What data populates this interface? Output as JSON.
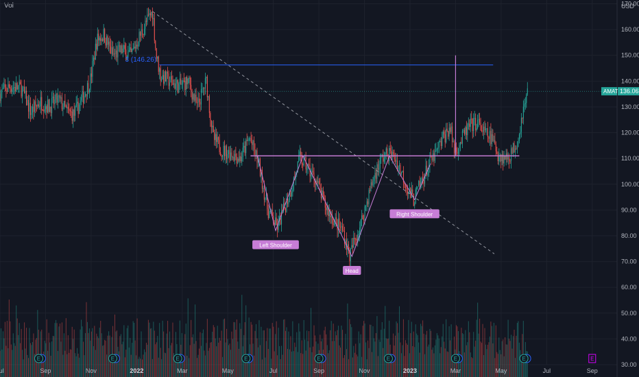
{
  "header": {
    "volume_label": "Vol",
    "currency": "USD"
  },
  "colors": {
    "background": "#131722",
    "up": "#26a69a",
    "down": "#ef5350",
    "pattern": "#c77dd6",
    "target_line": "#2962ff",
    "grid": "#1e222d",
    "price_tag": "#26a69a",
    "label_bg": "#c77dd6"
  },
  "chart_data": {
    "type": "candlestick",
    "ticker": "AMAT",
    "last_price": "136.06",
    "y_ticks": [
      "170.00",
      "160.00",
      "150.00",
      "140.00",
      "130.00",
      "120.00",
      "110.00",
      "100.00",
      "90.00",
      "80.00",
      "70.00",
      "60.00",
      "50.00",
      "40.00",
      "30.00"
    ],
    "ylim": [
      30,
      172
    ],
    "x_ticks": [
      {
        "label": "Jul",
        "t": 0.0
      },
      {
        "label": "Sep",
        "t": 2.0
      },
      {
        "label": "Nov",
        "t": 4.0
      },
      {
        "label": "2022",
        "t": 6.0,
        "bold": true
      },
      {
        "label": "Mar",
        "t": 8.0
      },
      {
        "label": "May",
        "t": 10.0
      },
      {
        "label": "Jul",
        "t": 12.0
      },
      {
        "label": "Sep",
        "t": 14.0
      },
      {
        "label": "Nov",
        "t": 16.0
      },
      {
        "label": "2023",
        "t": 18.0,
        "bold": true
      },
      {
        "label": "Mar",
        "t": 20.0
      },
      {
        "label": "May",
        "t": 22.0
      },
      {
        "label": "Jul",
        "t": 24.0
      },
      {
        "label": "Sep",
        "t": 26.0
      }
    ],
    "price_path": [
      [
        0,
        135
      ],
      [
        0.5,
        138
      ],
      [
        1,
        137
      ],
      [
        1.4,
        128
      ],
      [
        1.8,
        132
      ],
      [
        2.2,
        130
      ],
      [
        2.6,
        133
      ],
      [
        3,
        128
      ],
      [
        3.3,
        127
      ],
      [
        3.7,
        134
      ],
      [
        4,
        140
      ],
      [
        4.3,
        156
      ],
      [
        4.6,
        158
      ],
      [
        5,
        150
      ],
      [
        5.4,
        152
      ],
      [
        5.8,
        150
      ],
      [
        6.2,
        158
      ],
      [
        6.6,
        165
      ],
      [
        6.75,
        167
      ],
      [
        6.9,
        150
      ],
      [
        7.1,
        142
      ],
      [
        7.5,
        140
      ],
      [
        7.9,
        138
      ],
      [
        8.3,
        140
      ],
      [
        8.7,
        130
      ],
      [
        9.1,
        140
      ],
      [
        9.4,
        118
      ],
      [
        9.8,
        113
      ],
      [
        10.2,
        112
      ],
      [
        10.6,
        110
      ],
      [
        11,
        118
      ],
      [
        11.4,
        108
      ],
      [
        11.8,
        90
      ],
      [
        12.0,
        87
      ],
      [
        12.2,
        83
      ],
      [
        12.5,
        90
      ],
      [
        12.9,
        100
      ],
      [
        13.2,
        110
      ],
      [
        13.5,
        107
      ],
      [
        13.9,
        102
      ],
      [
        14.3,
        92
      ],
      [
        14.7,
        86
      ],
      [
        15.1,
        82
      ],
      [
        15.4,
        72
      ],
      [
        15.6,
        78
      ],
      [
        15.9,
        85
      ],
      [
        16.2,
        95
      ],
      [
        16.5,
        104
      ],
      [
        16.8,
        110
      ],
      [
        17.1,
        112
      ],
      [
        17.4,
        110
      ],
      [
        17.7,
        104
      ],
      [
        18.0,
        97
      ],
      [
        18.2,
        94
      ],
      [
        18.5,
        100
      ],
      [
        18.9,
        108
      ],
      [
        19.2,
        112
      ],
      [
        19.5,
        118
      ],
      [
        19.8,
        122
      ],
      [
        20.0,
        113
      ],
      [
        20.3,
        117
      ],
      [
        20.6,
        122
      ],
      [
        21.0,
        124
      ],
      [
        21.3,
        120
      ],
      [
        21.6,
        118
      ],
      [
        21.9,
        112
      ],
      [
        22.2,
        110
      ],
      [
        22.5,
        112
      ],
      [
        22.8,
        118
      ],
      [
        23.0,
        129
      ],
      [
        23.1,
        131
      ],
      [
        23.2,
        136.06
      ]
    ],
    "volume_range": [
      2,
      18
    ],
    "pattern_points": [
      [
        11.3,
        111
      ],
      [
        12.1,
        82
      ],
      [
        13.3,
        111
      ],
      [
        15.45,
        72
      ],
      [
        17.1,
        111
      ],
      [
        18.2,
        94
      ],
      [
        18.9,
        108
      ]
    ],
    "neckline": {
      "t0": 11.0,
      "t1": 22.8,
      "price": 111
    },
    "downtrend": {
      "t0": 6.7,
      "p0": 167,
      "t1": 21.7,
      "p1": 73
    },
    "target": {
      "t0": 7.0,
      "t1": 21.65,
      "price": 146.26,
      "label": "(146.26)",
      "label_prefix": "3"
    },
    "measure_line": {
      "t": 20.0,
      "p0": 111,
      "p1": 150
    },
    "labels": [
      {
        "text": "Left Shoulder",
        "t": 12.1,
        "price": 82
      },
      {
        "text": "Head",
        "t": 15.45,
        "price": 72
      },
      {
        "text": "Right Shoulder",
        "t": 18.2,
        "price": 94
      }
    ],
    "earnings_markers": [
      {
        "t": 1.7,
        "type": "E"
      },
      {
        "t": 4.95,
        "type": "E"
      },
      {
        "t": 7.8,
        "type": "E"
      },
      {
        "t": 10.8,
        "type": "E"
      },
      {
        "t": 14.0,
        "type": "E"
      },
      {
        "t": 17.05,
        "type": "E"
      },
      {
        "t": 20.0,
        "type": "E"
      },
      {
        "t": 23.0,
        "type": "E"
      },
      {
        "t": 26.0,
        "type": "E",
        "future": true
      }
    ]
  }
}
